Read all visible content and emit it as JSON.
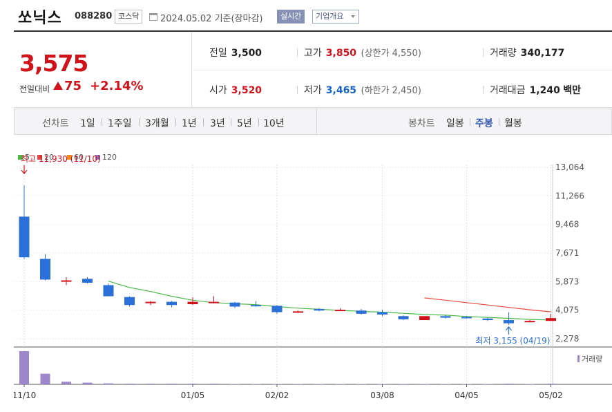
{
  "header": {
    "name": "쏘닉스",
    "code": "088280",
    "market": "코스닥",
    "date": "2024.05.02  기준(장마감)",
    "realtime_label": "실시간",
    "company_label": "기업개요"
  },
  "quote": {
    "price": "3,575",
    "change_label": "전일대비",
    "change": "75",
    "change_rate": "+2.14%",
    "prev_close_label": "전일",
    "prev_close": "3,500",
    "high_label": "고가",
    "high": "3,850",
    "upper_limit": "(상한가 4,550)",
    "volume_label": "거래량",
    "volume": "340,177",
    "open_label": "시가",
    "open": "3,520",
    "low_label": "저가",
    "low": "3,465",
    "lower_limit": "(하한가 2,450)",
    "amount_label": "거래대금",
    "amount": "1,240",
    "amount_unit": "백만"
  },
  "tabs": {
    "line_chart_label": "선차트",
    "periods": [
      "1일",
      "1주일",
      "3개월",
      "1년",
      "3년",
      "5년",
      "10년"
    ],
    "candle_label": "봉차트",
    "candle_types": [
      "일봉",
      "주봉",
      "월봉"
    ],
    "active_candle": "주봉"
  },
  "colors": {
    "up": "#d0121b",
    "down": "#2b6fd8",
    "ma5": "#4db848",
    "ma20": "#e5483e",
    "ma60": "#f28c1c",
    "ma120": "#8f72c0",
    "volume": "#9b87c9"
  },
  "chart_data": {
    "type": "candlestick",
    "legend": [
      "5",
      "20",
      "60",
      "120"
    ],
    "y_ticks": [
      "13,064",
      "11,266",
      "9,468",
      "7,671",
      "5,873",
      "4,075",
      "2,278"
    ],
    "ylim": [
      2278,
      13064
    ],
    "x_ticks": [
      {
        "label": "11/10",
        "index": 0
      },
      {
        "label": "01/05",
        "index": 8
      },
      {
        "label": "02/02",
        "index": 12
      },
      {
        "label": "03/08",
        "index": 17
      },
      {
        "label": "04/05",
        "index": 21
      },
      {
        "label": "05/02",
        "index": 25
      }
    ],
    "volume_label": "거래량",
    "max_annotation": {
      "text": "최고 11,930 (11/10)",
      "index": 0,
      "value": 11930
    },
    "min_annotation": {
      "text": "최저 3,155 (04/19)",
      "index": 23,
      "value": 3155
    },
    "candles": [
      {
        "o": 9960,
        "h": 11930,
        "l": 7300,
        "c": 7400,
        "v": 100
      },
      {
        "o": 7300,
        "h": 7600,
        "l": 5950,
        "c": 6000,
        "v": 32
      },
      {
        "o": 5900,
        "h": 6150,
        "l": 5650,
        "c": 5950,
        "v": 8
      },
      {
        "o": 6050,
        "h": 6150,
        "l": 5750,
        "c": 5800,
        "v": 5
      },
      {
        "o": 5650,
        "h": 5750,
        "l": 4950,
        "c": 4950,
        "v": 3
      },
      {
        "o": 4900,
        "h": 4950,
        "l": 4300,
        "c": 4400,
        "v": 2
      },
      {
        "o": 4550,
        "h": 4650,
        "l": 4400,
        "c": 4600,
        "v": 2
      },
      {
        "o": 4600,
        "h": 4650,
        "l": 4250,
        "c": 4400,
        "v": 2
      },
      {
        "o": 4450,
        "h": 4900,
        "l": 4400,
        "c": 4600,
        "v": 2
      },
      {
        "o": 4550,
        "h": 4950,
        "l": 4500,
        "c": 4600,
        "v": 2
      },
      {
        "o": 4550,
        "h": 4600,
        "l": 4200,
        "c": 4300,
        "v": 1
      },
      {
        "o": 4400,
        "h": 4650,
        "l": 4300,
        "c": 4350,
        "v": 1
      },
      {
        "o": 4350,
        "h": 4400,
        "l": 3850,
        "c": 3950,
        "v": 1
      },
      {
        "o": 3950,
        "h": 4050,
        "l": 3900,
        "c": 4000,
        "v": 1
      },
      {
        "o": 4150,
        "h": 4200,
        "l": 4000,
        "c": 4050,
        "v": 1
      },
      {
        "o": 4100,
        "h": 4200,
        "l": 4050,
        "c": 4100,
        "v": 1
      },
      {
        "o": 4050,
        "h": 4150,
        "l": 3800,
        "c": 3850,
        "v": 1
      },
      {
        "o": 3950,
        "h": 4100,
        "l": 3700,
        "c": 3800,
        "v": 1
      },
      {
        "o": 3700,
        "h": 3750,
        "l": 3450,
        "c": 3500,
        "v": 1
      },
      {
        "o": 3450,
        "h": 3700,
        "l": 3450,
        "c": 3700,
        "v": 1
      },
      {
        "o": 3700,
        "h": 3750,
        "l": 3550,
        "c": 3600,
        "v": 1
      },
      {
        "o": 3650,
        "h": 3700,
        "l": 3550,
        "c": 3600,
        "v": 1
      },
      {
        "o": 3550,
        "h": 3600,
        "l": 3400,
        "c": 3450,
        "v": 1
      },
      {
        "o": 3450,
        "h": 3950,
        "l": 3155,
        "c": 3250,
        "v": 2
      },
      {
        "o": 3350,
        "h": 3450,
        "l": 3300,
        "c": 3400,
        "v": 1
      },
      {
        "o": 3400,
        "h": 3850,
        "l": 3400,
        "c": 3575,
        "v": 2
      }
    ],
    "ma5": [
      {
        "i": 4,
        "v": 5900
      },
      {
        "i": 5,
        "v": 5500
      },
      {
        "i": 6,
        "v": 5250
      },
      {
        "i": 7,
        "v": 4950
      },
      {
        "i": 8,
        "v": 4700
      },
      {
        "i": 9,
        "v": 4550
      },
      {
        "i": 10,
        "v": 4480
      },
      {
        "i": 11,
        "v": 4420
      },
      {
        "i": 12,
        "v": 4300
      },
      {
        "i": 13,
        "v": 4200
      },
      {
        "i": 14,
        "v": 4130
      },
      {
        "i": 15,
        "v": 4060
      },
      {
        "i": 16,
        "v": 4000
      },
      {
        "i": 17,
        "v": 3950
      },
      {
        "i": 18,
        "v": 3880
      },
      {
        "i": 19,
        "v": 3800
      },
      {
        "i": 20,
        "v": 3760
      },
      {
        "i": 21,
        "v": 3680
      },
      {
        "i": 22,
        "v": 3620
      },
      {
        "i": 23,
        "v": 3560
      },
      {
        "i": 24,
        "v": 3490
      },
      {
        "i": 25,
        "v": 3460
      }
    ],
    "ma20": [
      {
        "i": 19,
        "v": 4850
      },
      {
        "i": 20,
        "v": 4700
      },
      {
        "i": 21,
        "v": 4550
      },
      {
        "i": 22,
        "v": 4400
      },
      {
        "i": 23,
        "v": 4250
      },
      {
        "i": 24,
        "v": 4100
      },
      {
        "i": 25,
        "v": 3970
      }
    ]
  }
}
